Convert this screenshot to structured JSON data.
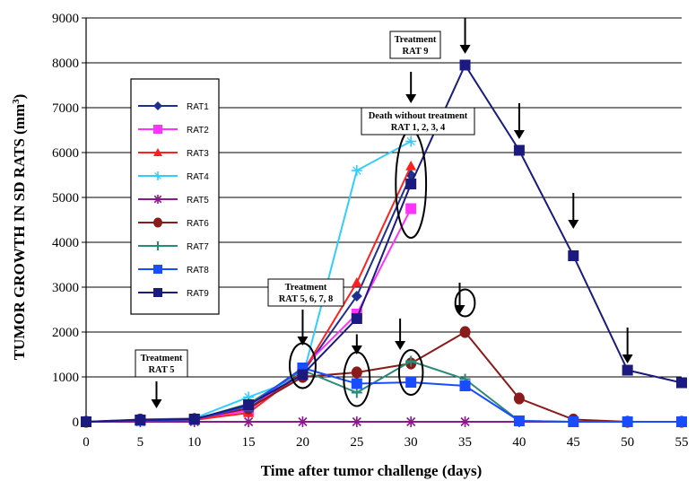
{
  "chart_data": {
    "type": "line",
    "title": "",
    "xlabel": "Time after tumor challenge (days)",
    "ylabel": "TUMOR GROWTH IN SD RATS (mm",
    "ylabel_sup": "3",
    "ylabel_end": ")",
    "xlim": [
      0,
      55
    ],
    "ylim": [
      0,
      9000
    ],
    "xticks": [
      0,
      5,
      10,
      15,
      20,
      25,
      30,
      35,
      40,
      45,
      50,
      55
    ],
    "yticks": [
      0,
      1000,
      2000,
      3000,
      4000,
      5000,
      6000,
      7000,
      8000,
      9000
    ],
    "grid": "horizontal",
    "legend_position": "left",
    "series": [
      {
        "name": "RAT1",
        "color": "#1f2f8f",
        "marker": "diamond",
        "x": [
          0,
          5,
          10,
          15,
          20,
          25,
          30
        ],
        "y": [
          0,
          30,
          50,
          300,
          1100,
          2800,
          5500
        ]
      },
      {
        "name": "RAT2",
        "color": "#ff33ff",
        "marker": "square",
        "x": [
          0,
          5,
          10,
          15,
          20,
          25,
          30
        ],
        "y": [
          0,
          40,
          60,
          250,
          1200,
          2400,
          4750
        ]
      },
      {
        "name": "RAT3",
        "color": "#ff2020",
        "marker": "triangle",
        "x": [
          0,
          5,
          10,
          15,
          20,
          25,
          30
        ],
        "y": [
          0,
          20,
          40,
          200,
          1100,
          3100,
          5700
        ]
      },
      {
        "name": "RAT4",
        "color": "#33ccff",
        "marker": "star",
        "x": [
          0,
          5,
          10,
          15,
          20,
          25,
          30
        ],
        "y": [
          0,
          50,
          80,
          550,
          1000,
          5600,
          6250
        ]
      },
      {
        "name": "RAT5",
        "color": "#8b1a8b",
        "marker": "asterisk",
        "x": [
          0,
          5,
          10,
          15,
          20,
          25,
          30,
          35,
          40,
          45,
          50,
          55
        ],
        "y": [
          0,
          0,
          0,
          0,
          0,
          0,
          0,
          0,
          0,
          0,
          0,
          0
        ]
      },
      {
        "name": "RAT6",
        "color": "#8b1a1a",
        "marker": "circle",
        "x": [
          0,
          5,
          10,
          15,
          20,
          25,
          30,
          35,
          40,
          45,
          50,
          55
        ],
        "y": [
          0,
          50,
          60,
          300,
          1000,
          1100,
          1300,
          2000,
          520,
          50,
          0,
          0
        ]
      },
      {
        "name": "RAT7",
        "color": "#2a8a7a",
        "marker": "plus",
        "x": [
          0,
          5,
          10,
          15,
          20,
          25,
          30,
          35,
          40,
          45,
          50,
          55
        ],
        "y": [
          0,
          30,
          50,
          400,
          1150,
          650,
          1350,
          950,
          20,
          0,
          0,
          0
        ]
      },
      {
        "name": "RAT8",
        "color": "#1a4cff",
        "marker": "square",
        "x": [
          0,
          5,
          10,
          15,
          20,
          25,
          30,
          35,
          40,
          45,
          50,
          55
        ],
        "y": [
          0,
          30,
          50,
          350,
          1200,
          850,
          880,
          800,
          20,
          0,
          0,
          0
        ]
      },
      {
        "name": "RAT9",
        "color": "#1a1a80",
        "marker": "square",
        "x": [
          0,
          5,
          10,
          15,
          20,
          25,
          30,
          35,
          40,
          45,
          50,
          55
        ],
        "y": [
          0,
          40,
          60,
          380,
          1050,
          2300,
          5300,
          7950,
          6050,
          3700,
          1150,
          870
        ]
      }
    ],
    "annotations": [
      {
        "text_lines": [
          "Treatment",
          "RAT 5"
        ],
        "arrow_x": 6.5,
        "arrow_y_top": 900,
        "arrow_y_bottom": 300
      },
      {
        "text_lines": [
          "Treatment",
          "RAT 5, 6, 7, 8"
        ],
        "arrow_x": 20,
        "arrow_y_top": 2500,
        "arrow_y_bottom": 1700
      },
      {
        "text_lines": [
          "Treatment",
          "RAT 9"
        ],
        "arrow_x": 30,
        "arrow_y_top": 7800,
        "arrow_y_bottom": 7100
      },
      {
        "text_lines": [
          "Death without treatment",
          "RAT 1, 2, 3, 4"
        ],
        "arrow_x": null
      },
      {
        "text_lines": [],
        "arrow_x": 25,
        "arrow_y_top": 1950,
        "arrow_y_bottom": 1500
      },
      {
        "text_lines": [],
        "arrow_x": 29,
        "arrow_y_top": 2300,
        "arrow_y_bottom": 1600
      },
      {
        "text_lines": [],
        "arrow_x": 34.5,
        "arrow_y_top": 3100,
        "arrow_y_bottom": 2400
      },
      {
        "text_lines": [],
        "arrow_x": 35,
        "arrow_y_top": 9000,
        "arrow_y_bottom": 8200
      },
      {
        "text_lines": [],
        "arrow_x": 40,
        "arrow_y_top": 7100,
        "arrow_y_bottom": 6300
      },
      {
        "text_lines": [],
        "arrow_x": 45,
        "arrow_y_top": 5100,
        "arrow_y_bottom": 4300
      },
      {
        "text_lines": [],
        "arrow_x": 50,
        "arrow_y_top": 2100,
        "arrow_y_bottom": 1300
      }
    ],
    "highlight_ellipses": [
      {
        "x": 20,
        "y": 1250,
        "x_radius_days": 1.2,
        "y_radius": 500
      },
      {
        "x": 25,
        "y": 950,
        "x_radius_days": 1.2,
        "y_radius": 600
      },
      {
        "x": 30,
        "y": 1100,
        "x_radius_days": 1.1,
        "y_radius": 500
      },
      {
        "x": 30,
        "y": 5300,
        "x_radius_days": 1.4,
        "y_radius": 1200
      },
      {
        "x": 35,
        "y": 2650,
        "x_radius_days": 0.9,
        "y_radius": 300
      }
    ]
  }
}
